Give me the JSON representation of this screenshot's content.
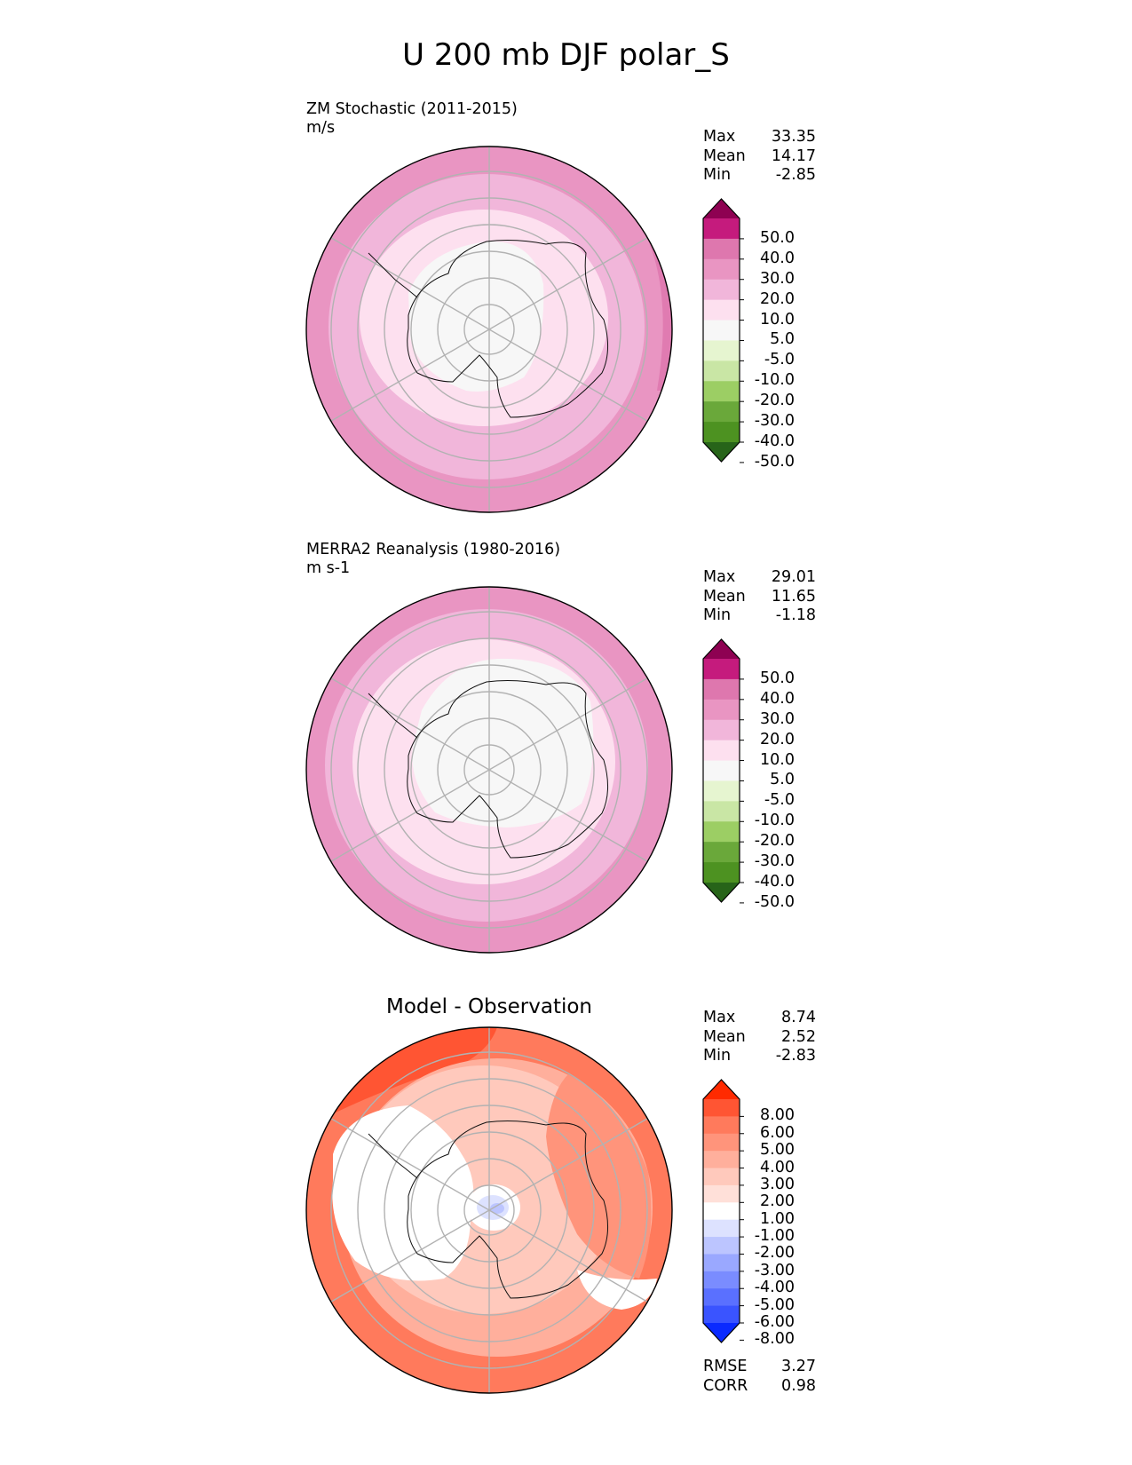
{
  "title": "U 200 mb DJF polar_S",
  "panels": [
    {
      "title_line1": "ZM Stochastic (2011-2015)",
      "title_line2": "m/s",
      "stats": [
        {
          "label": "Max",
          "value": "33.35"
        },
        {
          "label": "Mean",
          "value": "14.17"
        },
        {
          "label": "Min",
          "value": "-2.85"
        }
      ],
      "colorbar": {
        "ticks": [
          "50.0",
          "40.0",
          "30.0",
          "20.0",
          "10.0",
          "5.0",
          "-5.0",
          "-10.0",
          "-20.0",
          "-30.0",
          "-40.0",
          "-50.0"
        ],
        "colors": [
          "#8e0152",
          "#c51b7d",
          "#de77ae",
          "#e995c2",
          "#f1b6da",
          "#fde0ef",
          "#f7f7f7",
          "#e6f5d0",
          "#c9e6a5",
          "#9cce64",
          "#6aa83a",
          "#4d9221",
          "#276419"
        ]
      }
    },
    {
      "title_line1": "MERRA2 Reanalysis (1980-2016)",
      "title_line2": "m s-1",
      "stats": [
        {
          "label": "Max",
          "value": "29.01"
        },
        {
          "label": "Mean",
          "value": "11.65"
        },
        {
          "label": "Min",
          "value": "-1.18"
        }
      ],
      "colorbar": {
        "ticks": [
          "50.0",
          "40.0",
          "30.0",
          "20.0",
          "10.0",
          "5.0",
          "-5.0",
          "-10.0",
          "-20.0",
          "-30.0",
          "-40.0",
          "-50.0"
        ],
        "colors": [
          "#8e0152",
          "#c51b7d",
          "#de77ae",
          "#e995c2",
          "#f1b6da",
          "#fde0ef",
          "#f7f7f7",
          "#e6f5d0",
          "#c9e6a5",
          "#9cce64",
          "#6aa83a",
          "#4d9221",
          "#276419"
        ]
      }
    },
    {
      "title": "Model - Observation",
      "stats": [
        {
          "label": "Max",
          "value": "8.74"
        },
        {
          "label": "Mean",
          "value": "2.52"
        },
        {
          "label": "Min",
          "value": "-2.83"
        }
      ],
      "colorbar": {
        "ticks": [
          "8.00",
          "6.00",
          "5.00",
          "4.00",
          "3.00",
          "2.00",
          "1.00",
          "-1.00",
          "-2.00",
          "-3.00",
          "-4.00",
          "-5.00",
          "-6.00",
          "-8.00"
        ],
        "colors": [
          "#ff2a00",
          "#ff5533",
          "#ff7a5c",
          "#ff947b",
          "#ffaf9c",
          "#ffc9bc",
          "#ffe0d9",
          "#ffffff",
          "#dde2ff",
          "#bcc5ff",
          "#9aa8ff",
          "#7a8cff",
          "#5a70ff",
          "#3a54ff",
          "#0a2aff"
        ]
      },
      "metrics": [
        {
          "label": "RMSE",
          "value": "3.27"
        },
        {
          "label": "CORR",
          "value": "0.98"
        }
      ]
    }
  ],
  "chart_data": [
    {
      "type": "heatmap",
      "title": "ZM Stochastic (2011-2015)",
      "units": "m/s",
      "projection": "south polar stereographic",
      "levels": [
        -50,
        -40,
        -30,
        -20,
        -10,
        -5,
        5,
        10,
        20,
        30,
        40,
        50
      ],
      "stats": {
        "max": 33.35,
        "mean": 14.17,
        "min": -2.85
      },
      "field_bands": [
        {
          "level": "-5 to 5",
          "pole_distance": [
            0,
            0.28
          ]
        },
        {
          "level": "5 to 10",
          "pole_distance": [
            0.28,
            0.48
          ]
        },
        {
          "level": "10 to 20",
          "pole_distance": [
            0.48,
            0.78
          ]
        },
        {
          "level": "20 to 30",
          "pole_distance": [
            0.78,
            0.96
          ]
        },
        {
          "level": "30 to 40",
          "pole_distance": [
            0.96,
            1.0
          ]
        }
      ]
    },
    {
      "type": "heatmap",
      "title": "MERRA2 Reanalysis (1980-2016)",
      "units": "m s-1",
      "projection": "south polar stereographic",
      "levels": [
        -50,
        -40,
        -30,
        -20,
        -10,
        -5,
        5,
        10,
        20,
        30,
        40,
        50
      ],
      "stats": {
        "max": 29.01,
        "mean": 11.65,
        "min": -1.18
      },
      "field_bands": [
        {
          "level": "-5 to 5",
          "pole_distance": [
            0,
            0.33
          ]
        },
        {
          "level": "5 to 10",
          "pole_distance": [
            0.33,
            0.52
          ]
        },
        {
          "level": "10 to 20",
          "pole_distance": [
            0.52,
            0.84
          ]
        },
        {
          "level": "20 to 30",
          "pole_distance": [
            0.84,
            1.0
          ]
        }
      ]
    },
    {
      "type": "heatmap",
      "title": "Model - Observation",
      "projection": "south polar stereographic",
      "levels": [
        -8,
        -6,
        -5,
        -4,
        -3,
        -2,
        -1,
        1,
        2,
        3,
        4,
        5,
        6,
        8
      ],
      "stats": {
        "max": 8.74,
        "mean": 2.52,
        "min": -2.83,
        "rmse": 3.27,
        "corr": 0.98
      },
      "field_bands": [
        {
          "level": "-3 to -1",
          "pole_distance": [
            0,
            0.08
          ]
        },
        {
          "level": "-1 to 1",
          "pole_distance": [
            0.08,
            0.45
          ]
        },
        {
          "level": "1 to 2",
          "pole_distance": [
            0.45,
            0.6
          ]
        },
        {
          "level": "2 to 4",
          "pole_distance": [
            0.6,
            0.8
          ]
        },
        {
          "level": "4 to 8",
          "pole_distance": [
            0.8,
            1.0
          ]
        }
      ]
    }
  ]
}
